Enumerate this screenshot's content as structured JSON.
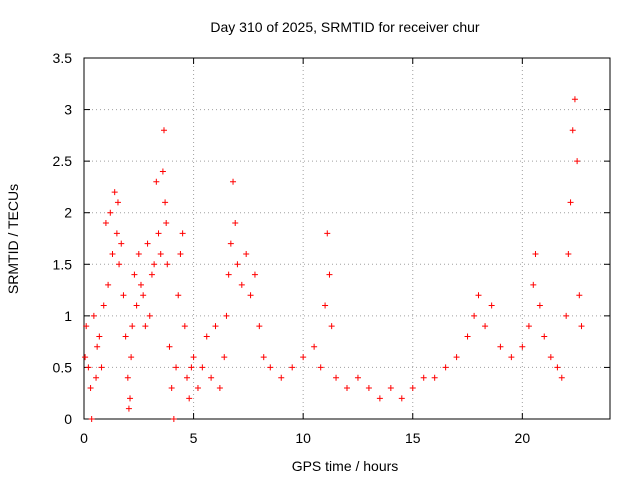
{
  "chart_data": {
    "type": "scatter",
    "title": "Day 310 of 2025, SRMTID for receiver chur",
    "xlabel": "GPS time / hours",
    "ylabel": "SRMTID / TECUs",
    "xlim": [
      0,
      24
    ],
    "ylim": [
      0,
      3.5
    ],
    "xticks": [
      0,
      5,
      10,
      15,
      20
    ],
    "xtick_labels": [
      "0",
      "5",
      "10",
      "15",
      "20"
    ],
    "yticks": [
      0,
      0.5,
      1,
      1.5,
      2,
      2.5,
      3,
      3.5
    ],
    "ytick_labels": [
      "0",
      "0.5",
      "1",
      "1.5",
      "2",
      "2.5",
      "3",
      "3.5"
    ],
    "grid": true,
    "marker": "plus",
    "series": [
      {
        "name": "SRMTID",
        "color": "#ff0000",
        "x": [
          0.05,
          0.1,
          0.2,
          0.3,
          0.35,
          0.45,
          0.55,
          0.6,
          0.7,
          0.8,
          0.9,
          1.0,
          1.1,
          1.2,
          1.3,
          1.4,
          1.5,
          1.55,
          1.6,
          1.7,
          1.8,
          1.9,
          2.0,
          2.05,
          2.1,
          2.15,
          2.2,
          2.3,
          2.4,
          2.5,
          2.6,
          2.7,
          2.8,
          2.9,
          3.0,
          3.1,
          3.2,
          3.3,
          3.4,
          3.5,
          3.6,
          3.65,
          3.7,
          3.75,
          3.8,
          3.9,
          4.0,
          4.1,
          4.2,
          4.3,
          4.4,
          4.5,
          4.6,
          4.7,
          4.8,
          4.9,
          5.0,
          5.2,
          5.4,
          5.6,
          5.8,
          6.0,
          6.2,
          6.4,
          6.5,
          6.6,
          6.7,
          6.8,
          6.9,
          7.0,
          7.2,
          7.4,
          7.6,
          7.8,
          8.0,
          8.2,
          8.5,
          9.0,
          9.5,
          10.0,
          10.5,
          10.8,
          11.0,
          11.1,
          11.2,
          11.3,
          11.5,
          12.0,
          12.5,
          13.0,
          13.5,
          14.0,
          14.5,
          15.0,
          15.5,
          16.0,
          16.5,
          17.0,
          17.5,
          17.8,
          18.0,
          18.3,
          18.6,
          19.0,
          19.5,
          20.0,
          20.3,
          20.5,
          20.6,
          20.8,
          21.0,
          21.3,
          21.6,
          21.8,
          22.0,
          22.1,
          22.2,
          22.3,
          22.4,
          22.5,
          22.6,
          22.7
        ],
        "y": [
          0.6,
          0.9,
          0.5,
          0.3,
          0.0,
          1.0,
          0.4,
          0.7,
          0.8,
          0.5,
          1.1,
          1.9,
          1.3,
          2.0,
          1.6,
          2.2,
          1.8,
          2.1,
          1.5,
          1.7,
          1.2,
          0.8,
          0.4,
          0.1,
          0.2,
          0.6,
          0.9,
          1.4,
          1.1,
          1.6,
          1.3,
          1.2,
          0.9,
          1.7,
          1.0,
          1.4,
          1.5,
          2.3,
          1.8,
          1.6,
          2.4,
          2.8,
          2.1,
          1.9,
          1.5,
          0.7,
          0.3,
          0.0,
          0.5,
          1.2,
          1.6,
          1.8,
          0.9,
          0.4,
          0.2,
          0.5,
          0.6,
          0.3,
          0.5,
          0.8,
          0.4,
          0.9,
          0.3,
          0.6,
          1.0,
          1.4,
          1.7,
          2.3,
          1.9,
          1.5,
          1.3,
          1.6,
          1.2,
          1.4,
          0.9,
          0.6,
          0.5,
          0.4,
          0.5,
          0.6,
          0.7,
          0.5,
          1.1,
          1.8,
          1.4,
          0.9,
          0.4,
          0.3,
          0.4,
          0.3,
          0.2,
          0.3,
          0.2,
          0.3,
          0.4,
          0.4,
          0.5,
          0.6,
          0.8,
          1.0,
          1.2,
          0.9,
          1.1,
          0.7,
          0.6,
          0.7,
          0.9,
          1.3,
          1.6,
          1.1,
          0.8,
          0.6,
          0.5,
          0.4,
          1.0,
          1.6,
          2.1,
          2.8,
          3.1,
          2.5,
          1.2,
          0.9
        ]
      }
    ]
  }
}
